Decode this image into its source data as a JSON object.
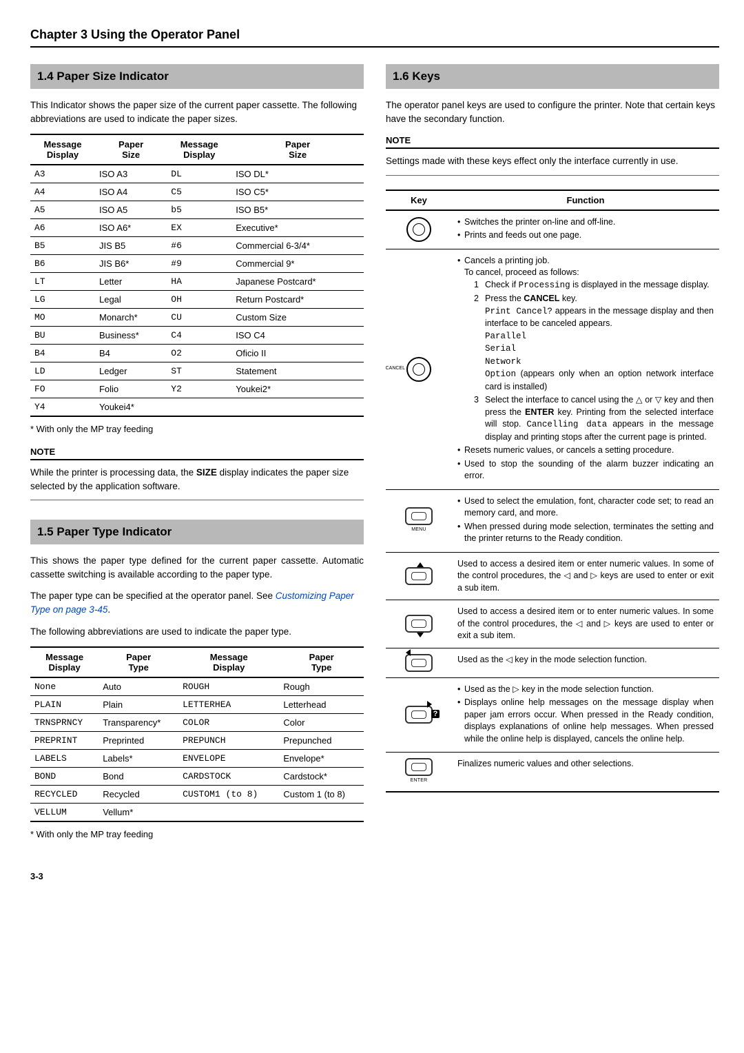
{
  "chapter": {
    "title": "Chapter 3  Using the Operator Panel"
  },
  "sections": {
    "s14": {
      "heading": "1.4 Paper Size Indicator",
      "intro": "This Indicator shows the paper size of the current paper cassette. The following abbreviations are used to indicate the paper sizes.",
      "table_headers": [
        "Message Display",
        "Paper Size",
        "Message Display",
        "Paper Size"
      ],
      "rows": [
        [
          "A3",
          "ISO A3",
          "DL",
          "ISO DL*"
        ],
        [
          "A4",
          "ISO A4",
          "C5",
          "ISO C5*"
        ],
        [
          "A5",
          "ISO A5",
          "b5",
          "ISO B5*"
        ],
        [
          "A6",
          "ISO A6*",
          "EX",
          "Executive*"
        ],
        [
          "B5",
          "JIS B5",
          "#6",
          "Commercial 6-3/4*"
        ],
        [
          "B6",
          "JIS B6*",
          "#9",
          "Commercial 9*"
        ],
        [
          "LT",
          "Letter",
          "HA",
          "Japanese Postcard*"
        ],
        [
          "LG",
          "Legal",
          "OH",
          "Return Postcard*"
        ],
        [
          "MO",
          "Monarch*",
          "CU",
          "Custom Size"
        ],
        [
          "BU",
          "Business*",
          "C4",
          "ISO C4"
        ],
        [
          "B4",
          "B4",
          "O2",
          "Oficio II"
        ],
        [
          "LD",
          "Ledger",
          "ST",
          "Statement"
        ],
        [
          "FO",
          "Folio",
          "Y2",
          "Youkei2*"
        ],
        [
          "Y4",
          "Youkei4*",
          "",
          ""
        ]
      ],
      "footnote": "* With only the MP tray feeding",
      "note_hdr": "NOTE",
      "note_body": "While the printer is processing data, the SIZE display indicates the paper size selected by the application software."
    },
    "s15": {
      "heading": "1.5 Paper Type Indicator",
      "p1": "This shows the paper type defined for the current paper cassette. Automatic cassette switching is available according to the paper type.",
      "p2a": "The paper type can be specified at the operator panel. See ",
      "xref": "Customizing Paper Type on page 3-45",
      "p2b": ".",
      "p3": "The following abbreviations are used to indicate the paper type.",
      "table_headers": [
        "Message Display",
        "Paper Type",
        "Message Display",
        "Paper Type"
      ],
      "rows": [
        [
          "None",
          "Auto",
          "ROUGH",
          "Rough"
        ],
        [
          "PLAIN",
          "Plain",
          "LETTERHEA",
          "Letterhead"
        ],
        [
          "TRNSPRNCY",
          "Transparency*",
          "COLOR",
          "Color"
        ],
        [
          "PREPRINT",
          "Preprinted",
          "PREPUNCH",
          "Prepunched"
        ],
        [
          "LABELS",
          "Labels*",
          "ENVELOPE",
          "Envelope*"
        ],
        [
          "BOND",
          "Bond",
          "CARDSTOCK",
          "Cardstock*"
        ],
        [
          "RECYCLED",
          "Recycled",
          "CUSTOM1 (to 8)",
          "Custom 1 (to 8)"
        ],
        [
          "VELLUM",
          "Vellum*",
          "",
          ""
        ]
      ],
      "footnote": "* With only the MP tray feeding"
    },
    "s16": {
      "heading": "1.6 Keys",
      "intro": "The operator panel keys are used to configure the printer. Note that certain keys have the secondary function.",
      "note_hdr": "NOTE",
      "note_body": "Settings made with these keys effect only the interface currently in use.",
      "table_headers": [
        "Key",
        "Function"
      ],
      "keys": {
        "go": {
          "label": "",
          "bullets": [
            "Switches the printer on-line and off-line.",
            "Prints and feeds out one page."
          ]
        },
        "cancel": {
          "label": "CANCEL",
          "b1": "Cancels a printing job.",
          "lead": "To cancel, proceed as follows:",
          "n1": [
            "1",
            "Check if ",
            " is displayed in the message display.",
            "Processing"
          ],
          "n2a": [
            "2",
            "Press the ",
            " key."
          ],
          "n2a_bold": "CANCEL",
          "n2b_mono1": "Print   Cancel?",
          "n2b_rest": " appears in the message display and then interface to be canceled appears.",
          "lines": [
            "Parallel",
            "Serial",
            "Network"
          ],
          "opt_mono": "Option",
          "opt_rest": " (appears only when an option network interface card is installed)",
          "n3a": "Select the interface to cancel using the △ or ▽ key and then press the ",
          "n3_bold": "ENTER",
          "n3b": " key. Printing from the selected interface will stop. ",
          "n3_mono": "Cancelling data",
          "n3c": " appears in the message display and printing stops after the current page is printed.",
          "b2": "Resets numeric values, or cancels a setting procedure.",
          "b3": "Used to stop the sounding of the alarm buzzer indicating an error."
        },
        "menu": {
          "label": "MENU",
          "bullets": [
            "Used to select the emulation, font, character code set; to read an memory card, and more.",
            "When pressed during mode selection, terminates the setting and the printer returns to the Ready condition."
          ]
        },
        "up": {
          "text": "Used to access a desired item or enter numeric values. In some of the control procedures, the ◁ and ▷ keys are used to enter or exit a sub item."
        },
        "down": {
          "text": "Used to access a desired item or to enter numeric values. In some of the control procedures, the ◁ and ▷ keys are used to enter or exit a sub item."
        },
        "left": {
          "text": "Used as the ◁ key in the mode selection function."
        },
        "right": {
          "b1": "Used as the ▷ key in the mode selection function.",
          "b2": "Displays online help messages on the message display when paper jam errors occur. When pressed in the Ready condition, displays explanations of online help messages. When pressed while the online help is displayed, cancels the online help."
        },
        "enter": {
          "label": "ENTER",
          "text": "Finalizes numeric values and other selections."
        }
      }
    }
  },
  "page_num": "3-3"
}
